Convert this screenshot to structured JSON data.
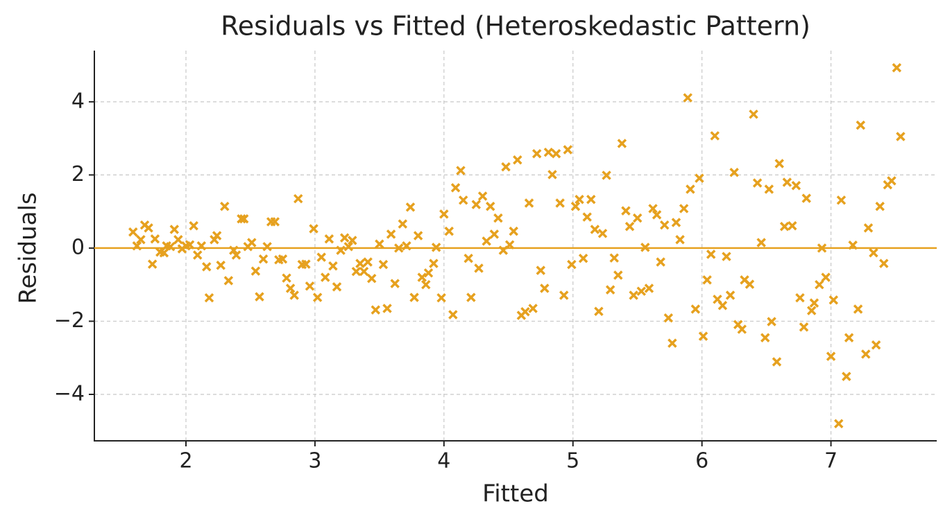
{
  "chart_data": {
    "type": "scatter",
    "title": "Residuals vs Fitted (Heteroskedastic Pattern)",
    "x_label": "Fitted",
    "y_label": "Residuals",
    "xlim": [
      1.29,
      7.82
    ],
    "ylim": [
      -5.27,
      5.4
    ],
    "xticks": [
      2,
      3,
      4,
      5,
      6,
      7
    ],
    "yticks": [
      {
        "value": -4,
        "label": "−4"
      },
      {
        "value": -2,
        "label": "−2"
      },
      0,
      2,
      4
    ],
    "grid": true,
    "color": "#e6a11f",
    "reference_line": 0,
    "x": [
      1.59,
      1.62,
      1.65,
      1.68,
      1.71,
      1.74,
      1.76,
      1.8,
      1.83,
      1.85,
      1.88,
      1.91,
      1.94,
      1.97,
      2.0,
      2.03,
      2.06,
      2.09,
      2.12,
      2.16,
      2.18,
      2.22,
      2.24,
      2.27,
      2.3,
      2.33,
      2.37,
      2.39,
      2.43,
      2.45,
      2.48,
      2.51,
      2.54,
      2.57,
      2.6,
      2.63,
      2.66,
      2.69,
      2.72,
      2.75,
      2.78,
      2.81,
      2.84,
      2.87,
      2.9,
      2.93,
      2.96,
      2.99,
      3.02,
      3.05,
      3.08,
      3.11,
      3.14,
      3.17,
      3.2,
      3.23,
      3.26,
      3.29,
      3.32,
      3.35,
      3.38,
      3.41,
      3.44,
      3.47,
      3.5,
      3.53,
      3.56,
      3.59,
      3.62,
      3.65,
      3.68,
      3.71,
      3.74,
      3.77,
      3.8,
      3.83,
      3.86,
      3.88,
      3.92,
      3.94,
      3.98,
      4.0,
      4.04,
      4.07,
      4.09,
      4.13,
      4.15,
      4.19,
      4.21,
      4.25,
      4.27,
      4.3,
      4.33,
      4.36,
      4.39,
      4.42,
      4.46,
      4.48,
      4.51,
      4.54,
      4.57,
      4.6,
      4.63,
      4.66,
      4.69,
      4.72,
      4.75,
      4.78,
      4.81,
      4.84,
      4.87,
      4.9,
      4.93,
      4.96,
      4.99,
      5.02,
      5.05,
      5.08,
      5.11,
      5.14,
      5.17,
      5.2,
      5.23,
      5.26,
      5.29,
      5.32,
      5.35,
      5.38,
      5.41,
      5.44,
      5.47,
      5.5,
      5.53,
      5.56,
      5.59,
      5.62,
      5.65,
      5.68,
      5.71,
      5.74,
      5.77,
      5.8,
      5.83,
      5.86,
      5.89,
      5.91,
      5.95,
      5.98,
      6.01,
      6.04,
      6.07,
      6.1,
      6.12,
      6.16,
      6.19,
      6.22,
      6.25,
      6.28,
      6.31,
      6.33,
      6.37,
      6.4,
      6.43,
      6.46,
      6.49,
      6.52,
      6.54,
      6.58,
      6.6,
      6.64,
      6.66,
      6.7,
      6.73,
      6.76,
      6.79,
      6.81,
      6.85,
      6.87,
      6.91,
      6.93,
      6.96,
      7.0,
      7.02,
      7.06,
      7.08,
      7.12,
      7.14,
      7.17,
      7.21,
      7.23,
      7.27,
      7.29,
      7.33,
      7.35,
      7.38,
      7.41,
      7.44,
      7.47,
      7.51,
      7.54
    ],
    "y": [
      0.44,
      0.06,
      0.23,
      0.63,
      0.55,
      -0.44,
      0.25,
      -0.11,
      -0.13,
      0.06,
      0.04,
      0.51,
      0.23,
      -0.02,
      0.06,
      0.09,
      0.61,
      -0.19,
      0.06,
      -0.51,
      -1.36,
      0.23,
      0.34,
      -0.47,
      1.14,
      -0.89,
      -0.06,
      -0.19,
      0.8,
      0.8,
      0.04,
      0.15,
      -0.63,
      -1.33,
      -0.3,
      0.04,
      0.72,
      0.72,
      -0.32,
      -0.3,
      -0.82,
      -1.1,
      -1.29,
      1.35,
      -0.45,
      -0.44,
      -1.04,
      0.53,
      -1.35,
      -0.25,
      -0.8,
      0.25,
      -0.49,
      -1.06,
      -0.06,
      0.28,
      0.04,
      0.21,
      -0.64,
      -0.42,
      -0.64,
      -0.38,
      -0.83,
      -1.69,
      0.11,
      -0.45,
      -1.65,
      0.38,
      -0.97,
      0.0,
      0.66,
      0.06,
      1.12,
      -1.35,
      0.34,
      -0.8,
      -1.0,
      -0.68,
      -0.42,
      0.02,
      -1.36,
      0.93,
      0.46,
      -1.82,
      1.65,
      2.12,
      1.31,
      -0.28,
      -1.35,
      1.19,
      -0.55,
      1.42,
      0.19,
      1.14,
      0.38,
      0.82,
      -0.06,
      2.22,
      0.09,
      0.46,
      2.41,
      -1.84,
      -1.74,
      1.23,
      -1.65,
      2.58,
      -0.61,
      -1.1,
      2.62,
      2.01,
      2.58,
      1.23,
      -1.29,
      2.69,
      -0.45,
      1.14,
      1.33,
      -0.28,
      0.85,
      1.33,
      0.51,
      -1.73,
      0.4,
      1.99,
      -1.14,
      -0.27,
      -0.74,
      2.86,
      1.02,
      0.59,
      -1.29,
      0.82,
      -1.18,
      0.02,
      -1.1,
      1.08,
      0.91,
      -0.38,
      0.63,
      -1.91,
      -2.6,
      0.7,
      0.23,
      1.08,
      4.11,
      1.61,
      -1.67,
      1.91,
      -2.41,
      -0.87,
      -0.17,
      3.07,
      -1.4,
      -1.57,
      -0.23,
      -1.29,
      2.07,
      -2.09,
      -2.22,
      -0.87,
      -0.99,
      3.66,
      1.78,
      0.15,
      -2.45,
      1.61,
      -2.01,
      -3.11,
      2.31,
      0.59,
      1.8,
      0.61,
      1.71,
      -1.36,
      -2.16,
      1.36,
      -1.71,
      -1.5,
      -1.0,
      0.0,
      -0.8,
      -2.96,
      -1.42,
      -4.8,
      1.31,
      -3.51,
      -2.45,
      0.08,
      -1.67,
      3.36,
      -2.9,
      0.55,
      -0.13,
      -2.65,
      1.14,
      -0.42,
      1.73,
      1.84,
      4.93,
      3.05
    ]
  }
}
